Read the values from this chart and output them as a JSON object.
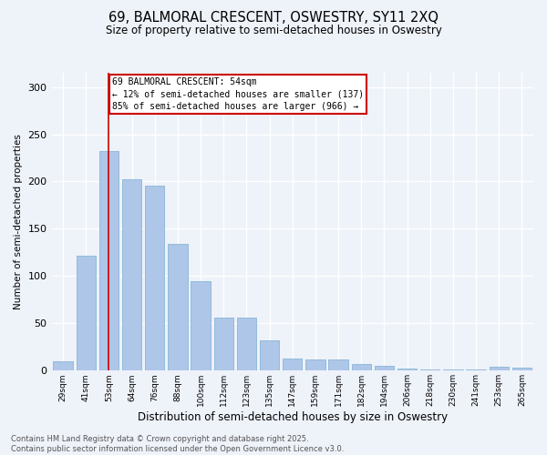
{
  "title_line1": "69, BALMORAL CRESCENT, OSWESTRY, SY11 2XQ",
  "title_line2": "Size of property relative to semi-detached houses in Oswestry",
  "xlabel": "Distribution of semi-detached houses by size in Oswestry",
  "ylabel": "Number of semi-detached properties",
  "categories": [
    "29sqm",
    "41sqm",
    "53sqm",
    "64sqm",
    "76sqm",
    "88sqm",
    "100sqm",
    "112sqm",
    "123sqm",
    "135sqm",
    "147sqm",
    "159sqm",
    "171sqm",
    "182sqm",
    "194sqm",
    "206sqm",
    "218sqm",
    "230sqm",
    "241sqm",
    "253sqm",
    "265sqm"
  ],
  "values": [
    10,
    122,
    232,
    202,
    196,
    134,
    95,
    56,
    56,
    32,
    13,
    12,
    12,
    7,
    5,
    2,
    1,
    1,
    1,
    4,
    3
  ],
  "bar_color": "#aec6e8",
  "bar_edge_color": "#7bafd4",
  "highlight_bar_index": 2,
  "vline_x": 2,
  "annotation_title": "69 BALMORAL CRESCENT: 54sqm",
  "annotation_line1": "← 12% of semi-detached houses are smaller (137)",
  "annotation_line2": "85% of semi-detached houses are larger (966) →",
  "annotation_box_color": "#ffffff",
  "annotation_box_edge_color": "#cc0000",
  "vline_color": "#cc0000",
  "ylim": [
    0,
    315
  ],
  "background_color": "#eef2f9",
  "grid_color": "#ffffff",
  "footer_line1": "Contains HM Land Registry data © Crown copyright and database right 2025.",
  "footer_line2": "Contains public sector information licensed under the Open Government Licence v3.0."
}
